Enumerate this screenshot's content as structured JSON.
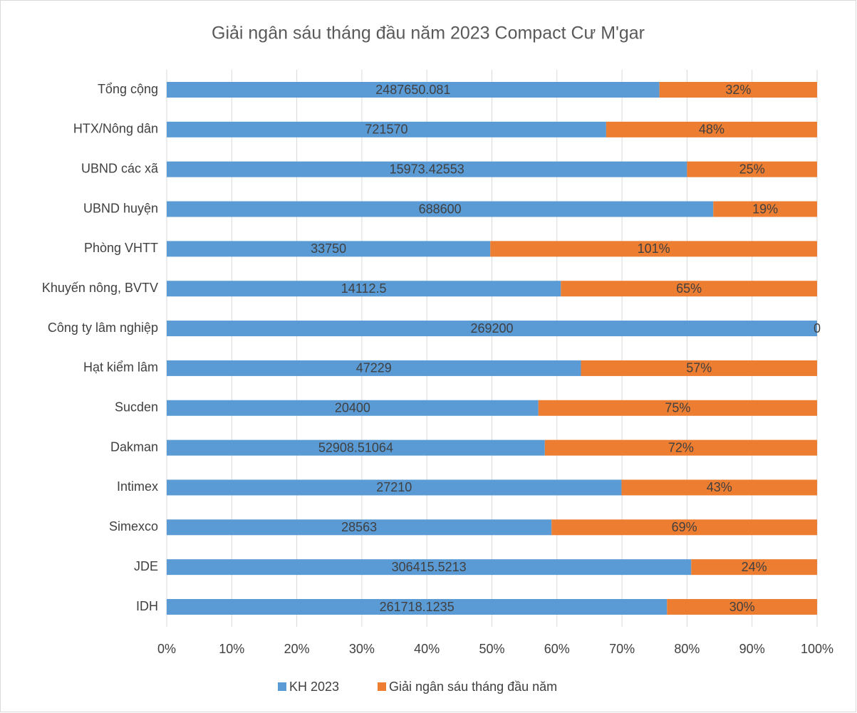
{
  "chart_data": {
    "type": "bar",
    "orientation": "horizontal",
    "stacked": "percent",
    "title": "Giải ngân sáu tháng đầu năm 2023 Compact Cư M'gar",
    "categories": [
      "Tổng cộng",
      "HTX/Nông dân",
      "UBND các xã",
      "UBND huyện",
      "Phòng VHTT",
      "Khuyến nông, BVTV",
      "Công ty lâm nghiệp",
      "Hạt kiểm lâm",
      "Sucden",
      "Dakman",
      "Intimex",
      "Simexco",
      "JDE",
      "IDH"
    ],
    "series": [
      {
        "name": "KH 2023",
        "color": "#5b9bd5",
        "values": [
          2487650.081,
          721570,
          15973.42553,
          688600,
          33750,
          14112.5,
          269200,
          47229,
          20400,
          52908.51064,
          27210,
          28563,
          306415.5213,
          261718.1235
        ]
      },
      {
        "name": "Giải ngân sáu tháng đầu năm",
        "color": "#ed7d31",
        "values": [
          32,
          48,
          25,
          19,
          101,
          65,
          0,
          57,
          75,
          72,
          43,
          69,
          24,
          30
        ],
        "value_labels": [
          "32%",
          "48%",
          "25%",
          "19%",
          "101%",
          "65%",
          "0",
          "57%",
          "75%",
          "72%",
          "43%",
          "69%",
          "24%",
          "30%"
        ]
      }
    ],
    "xlim": [
      0,
      100
    ],
    "xticks": [
      {
        "value": 0,
        "label": "0%"
      },
      {
        "value": 10,
        "label": "10%"
      },
      {
        "value": 20,
        "label": "20%"
      },
      {
        "value": 30,
        "label": "30%"
      },
      {
        "value": 40,
        "label": "40%"
      },
      {
        "value": 50,
        "label": "50%"
      },
      {
        "value": 60,
        "label": "60%"
      },
      {
        "value": 70,
        "label": "70%"
      },
      {
        "value": 80,
        "label": "80%"
      },
      {
        "value": 90,
        "label": "90%"
      },
      {
        "value": 100,
        "label": "100%"
      }
    ],
    "grid": true,
    "legend": "bottom"
  }
}
